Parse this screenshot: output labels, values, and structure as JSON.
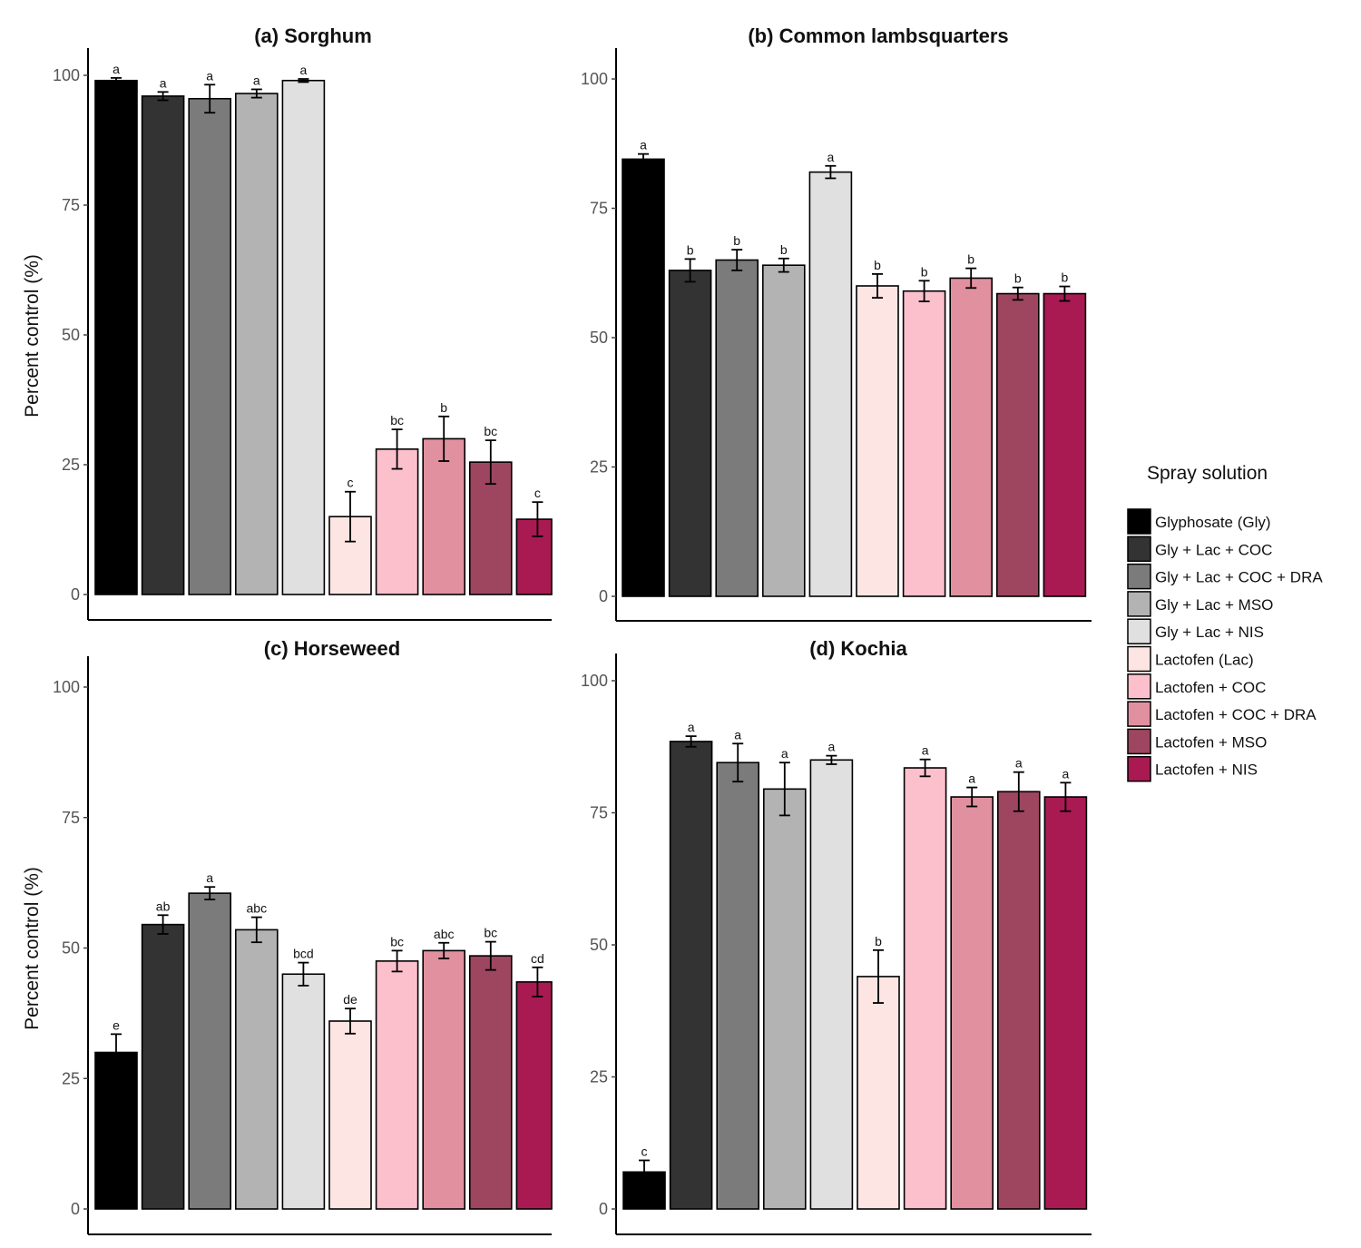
{
  "legend": {
    "title": "Spray solution",
    "entries": [
      {
        "label": "Glyphosate (Gly)",
        "color": "#000000"
      },
      {
        "label": "Gly + Lac + COC",
        "color": "#333333"
      },
      {
        "label": "Gly + Lac + COC + DRA",
        "color": "#7b7b7b"
      },
      {
        "label": "Gly + Lac + MSO",
        "color": "#b3b3b3"
      },
      {
        "label": "Gly + Lac + NIS",
        "color": "#e0e0e0"
      },
      {
        "label": "Lactofen (Lac)",
        "color": "#fde5e3"
      },
      {
        "label": "Lactofen + COC",
        "color": "#fcc0cd"
      },
      {
        "label": "Lactofen + COC + DRA",
        "color": "#e0909e"
      },
      {
        "label": "Lactofen + MSO",
        "color": "#9e4660"
      },
      {
        "label": "Lactofen + NIS",
        "color": "#a91a52"
      }
    ]
  },
  "chart_data": [
    {
      "type": "bar",
      "title": "(a) Sorghum",
      "ylabel": "Percent control (%)",
      "xlabel": "",
      "ylim": [
        0,
        100
      ],
      "yticks": [
        0,
        25,
        50,
        75,
        100
      ],
      "categories": [
        "Glyphosate (Gly)",
        "Gly + Lac + COC",
        "Gly + Lac + COC + DRA",
        "Gly + Lac + MSO",
        "Gly + Lac + NIS",
        "Lactofen (Lac)",
        "Lactofen + COC",
        "Lactofen + COC + DRA",
        "Lactofen + MSO",
        "Lactofen + NIS"
      ],
      "values": [
        99,
        96,
        95.5,
        96.5,
        99,
        15,
        28,
        30,
        25.5,
        14.5
      ],
      "errors": [
        0.5,
        0.8,
        2.7,
        0.8,
        0.3,
        4.8,
        3.8,
        4.3,
        4.2,
        3.3
      ],
      "labels": [
        "a",
        "a",
        "a",
        "a",
        "a",
        "c",
        "bc",
        "b",
        "bc",
        "c"
      ]
    },
    {
      "type": "bar",
      "title": "(b) Common lambsquarters",
      "ylabel": "",
      "xlabel": "",
      "ylim": [
        0,
        100
      ],
      "yticks": [
        0,
        25,
        50,
        75,
        100
      ],
      "categories": [
        "Glyphosate (Gly)",
        "Gly + Lac + COC",
        "Gly + Lac + COC + DRA",
        "Gly + Lac + MSO",
        "Gly + Lac + NIS",
        "Lactofen (Lac)",
        "Lactofen + COC",
        "Lactofen + COC + DRA",
        "Lactofen + MSO",
        "Lactofen + NIS"
      ],
      "values": [
        84.5,
        63,
        65,
        64,
        82,
        60,
        59,
        61.5,
        58.5,
        58.5
      ],
      "errors": [
        1,
        2.2,
        2,
        1.3,
        1.2,
        2.3,
        2,
        1.9,
        1.2,
        1.4
      ],
      "labels": [
        "a",
        "b",
        "b",
        "b",
        "a",
        "b",
        "b",
        "b",
        "b",
        "b"
      ]
    },
    {
      "type": "bar",
      "title": "(c) Horseweed",
      "ylabel": "Percent control (%)",
      "xlabel": "",
      "ylim": [
        0,
        100
      ],
      "yticks": [
        0,
        25,
        50,
        75,
        100
      ],
      "categories": [
        "Glyphosate (Gly)",
        "Gly + Lac + COC",
        "Gly + Lac + COC + DRA",
        "Gly + Lac + MSO",
        "Gly + Lac + NIS",
        "Lactofen (Lac)",
        "Lactofen + COC",
        "Lactofen + COC + DRA",
        "Lactofen + MSO",
        "Lactofen + NIS"
      ],
      "values": [
        30,
        54.5,
        60.5,
        53.5,
        45,
        36,
        47.5,
        49.5,
        48.5,
        43.5
      ],
      "errors": [
        3.5,
        1.8,
        1.2,
        2.4,
        2.2,
        2.4,
        2,
        1.5,
        2.7,
        2.8
      ],
      "labels": [
        "e",
        "ab",
        "a",
        "abc",
        "bcd",
        "de",
        "bc",
        "abc",
        "bc",
        "cd"
      ]
    },
    {
      "type": "bar",
      "title": "(d) Kochia",
      "ylabel": "",
      "xlabel": "",
      "ylim": [
        0,
        100
      ],
      "yticks": [
        0,
        25,
        50,
        75,
        100
      ],
      "categories": [
        "Glyphosate (Gly)",
        "Gly + Lac + COC",
        "Gly + Lac + COC + DRA",
        "Gly + Lac + MSO",
        "Gly + Lac + NIS",
        "Lactofen (Lac)",
        "Lactofen + COC",
        "Lactofen + COC + DRA",
        "Lactofen + MSO",
        "Lactofen + NIS"
      ],
      "values": [
        7,
        88.5,
        84.5,
        79.5,
        85,
        44,
        83.5,
        78,
        79,
        78
      ],
      "errors": [
        2.2,
        1,
        3.6,
        5,
        0.8,
        5,
        1.6,
        1.8,
        3.7,
        2.7
      ],
      "labels": [
        "c",
        "a",
        "a",
        "a",
        "a",
        "b",
        "a",
        "a",
        "a",
        "a"
      ]
    }
  ]
}
